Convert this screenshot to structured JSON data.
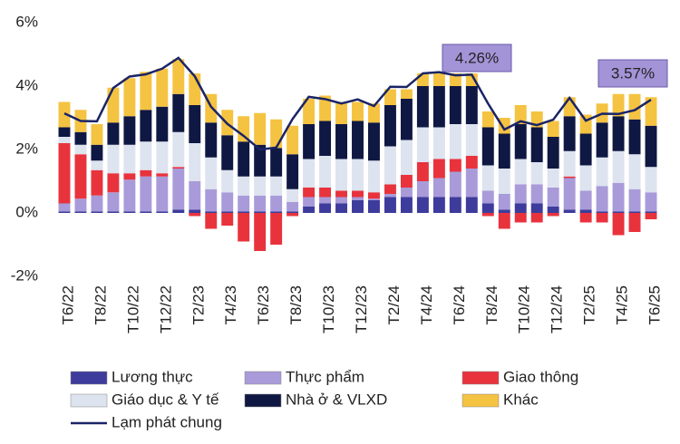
{
  "chart_data": {
    "type": "stacked_bar_line",
    "categories": [
      "T6/22",
      null,
      "T8/22",
      null,
      "T10/22",
      null,
      "T12/22",
      null,
      "T2/23",
      null,
      "T4/23",
      null,
      "T6/23",
      null,
      "T8/23",
      null,
      "T10/23",
      null,
      "T12/23",
      null,
      "T2/24",
      null,
      "T4/24",
      null,
      "T6/24",
      null,
      "T8/24",
      null,
      "T10/24",
      null,
      "T12/24",
      null,
      "T2/25",
      null,
      "T4/25",
      null,
      "T6/25"
    ],
    "ylim": [
      -2,
      6
    ],
    "yticks": [
      {
        "value": -2,
        "label": "-2%"
      },
      {
        "value": 0,
        "label": "0%"
      },
      {
        "value": 2,
        "label": "2%"
      },
      {
        "value": 4,
        "label": "4%"
      },
      {
        "value": 6,
        "label": "6%"
      }
    ],
    "series": [
      {
        "name": "Lương thực",
        "color": "#3d3c9c",
        "values": [
          0.05,
          0.05,
          0.05,
          0.05,
          0.05,
          0.05,
          0.05,
          0.1,
          0.1,
          0.05,
          0.05,
          0.05,
          0.05,
          0.05,
          0.05,
          0.2,
          0.3,
          0.3,
          0.4,
          0.4,
          0.5,
          0.5,
          0.5,
          0.5,
          0.5,
          0.5,
          0.3,
          0.1,
          0.3,
          0.3,
          0.2,
          0.1,
          0.1,
          0.05,
          0.05,
          0.05,
          0.05
        ]
      },
      {
        "name": "Thực phẩm",
        "color": "#a99bd9",
        "values": [
          0.25,
          0.4,
          0.5,
          0.6,
          1.0,
          1.1,
          1.1,
          1.3,
          0.9,
          0.7,
          0.6,
          0.5,
          0.5,
          0.5,
          0.3,
          0.3,
          0.2,
          0.2,
          0.1,
          0.05,
          0.1,
          0.3,
          0.5,
          0.6,
          0.8,
          0.9,
          0.4,
          0.5,
          0.6,
          0.6,
          0.6,
          1.0,
          0.6,
          0.8,
          0.9,
          0.7,
          0.6
        ]
      },
      {
        "name": "Giao thông",
        "color": "#e8333d",
        "values": [
          1.9,
          1.4,
          0.8,
          0.6,
          0.2,
          0.2,
          0.1,
          0.05,
          -0.1,
          -0.5,
          -0.4,
          -0.9,
          -1.2,
          -1.0,
          -0.1,
          0.3,
          0.3,
          0.2,
          0.2,
          0.2,
          0.3,
          0.4,
          0.6,
          0.6,
          0.4,
          0.4,
          -0.1,
          -0.5,
          -0.3,
          -0.3,
          -0.1,
          0.05,
          -0.3,
          -0.3,
          -0.7,
          -0.6,
          -0.2
        ]
      },
      {
        "name": "Giáo dục & Y tế",
        "color": "#dde3ef",
        "values": [
          0.2,
          0.3,
          0.3,
          0.9,
          0.9,
          0.9,
          1.0,
          1.1,
          1.2,
          1.0,
          0.7,
          0.6,
          0.6,
          0.6,
          0.4,
          0.9,
          1.0,
          1.0,
          1.0,
          1.0,
          1.2,
          1.1,
          1.1,
          1.0,
          1.1,
          1.0,
          0.8,
          0.8,
          0.8,
          0.7,
          0.6,
          0.8,
          0.8,
          0.9,
          1.0,
          1.1,
          0.8
        ]
      },
      {
        "name": "Nhà ở & VLXD",
        "color": "#0f1842",
        "values": [
          0.3,
          0.4,
          0.5,
          0.7,
          0.9,
          1.0,
          1.1,
          1.2,
          1.2,
          1.1,
          1.1,
          1.1,
          1.0,
          0.9,
          1.1,
          1.1,
          1.1,
          1.1,
          1.2,
          1.2,
          1.3,
          1.3,
          1.3,
          1.3,
          1.2,
          1.2,
          1.2,
          1.1,
          1.1,
          1.1,
          1.0,
          1.1,
          1.0,
          1.1,
          1.1,
          1.1,
          1.3
        ]
      },
      {
        "name": "Khác",
        "color": "#f5c342",
        "values": [
          0.8,
          0.7,
          0.65,
          1.1,
          1.2,
          1.2,
          1.2,
          1.1,
          1.0,
          0.9,
          0.8,
          0.8,
          1.0,
          0.9,
          0.9,
          0.8,
          0.8,
          0.7,
          0.6,
          0.6,
          0.5,
          0.3,
          0.4,
          0.4,
          0.4,
          0.4,
          0.5,
          0.5,
          0.6,
          0.5,
          0.5,
          0.6,
          0.6,
          0.6,
          0.7,
          0.8,
          0.9
        ]
      }
    ],
    "line": {
      "name": "Lạm phát chung",
      "color": "#1a2466",
      "values": [
        3.14,
        2.9,
        2.89,
        3.94,
        4.3,
        4.37,
        4.55,
        4.89,
        4.31,
        3.35,
        2.81,
        2.43,
        2.0,
        2.06,
        2.96,
        3.66,
        3.59,
        3.45,
        3.58,
        3.37,
        3.98,
        3.97,
        4.4,
        4.44,
        4.34,
        4.36,
        3.45,
        2.63,
        2.89,
        2.77,
        2.94,
        3.63,
        2.91,
        3.13,
        3.12,
        3.24,
        3.57
      ]
    },
    "annotations": [
      "4.26%",
      "3.57%"
    ]
  }
}
